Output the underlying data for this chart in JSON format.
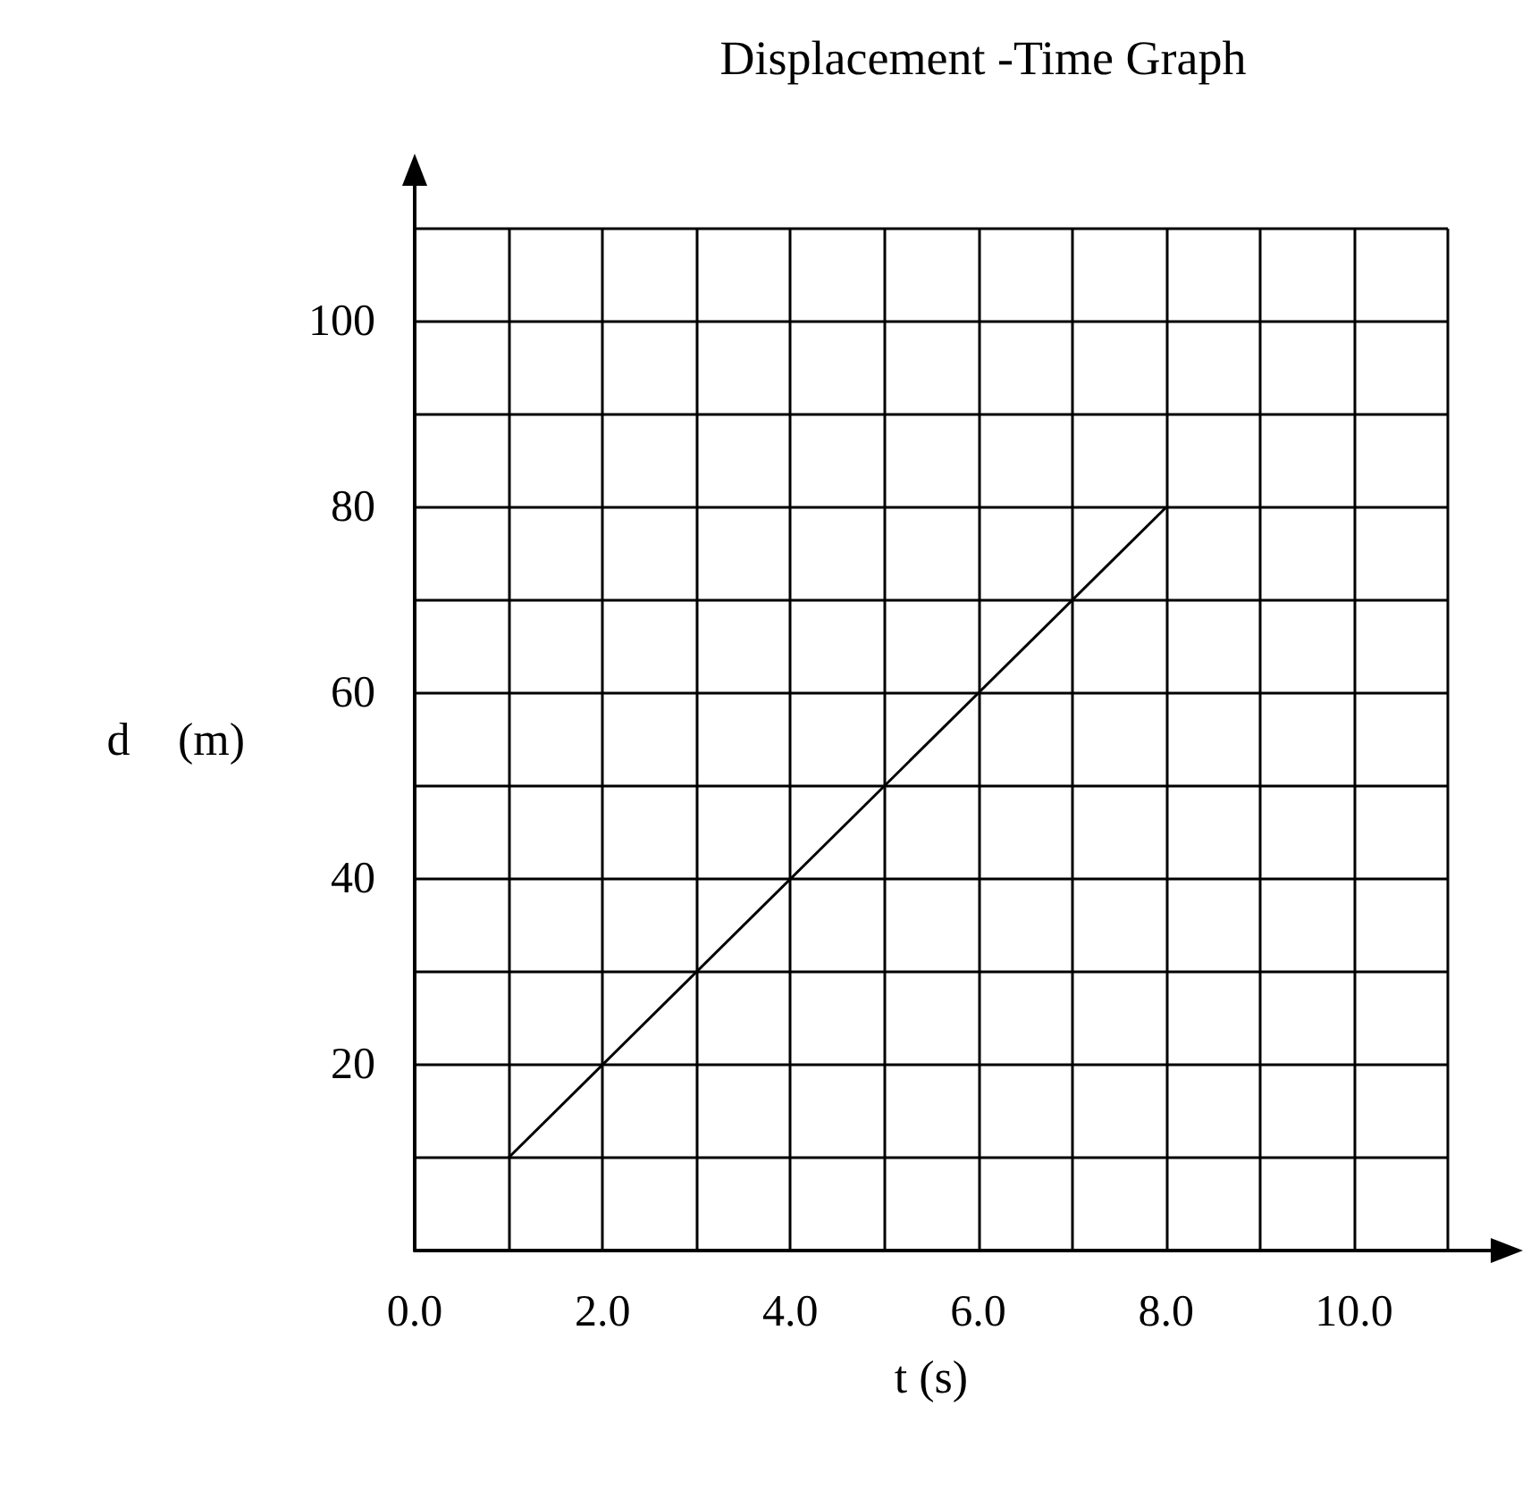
{
  "chart_data": {
    "type": "line",
    "title": "Displacement -Time Graph",
    "xlabel": "t (s)",
    "ylabel": "d⃗ (m)",
    "x": [
      1,
      8
    ],
    "series": [
      {
        "color": "#000000",
        "values": [
          10,
          80
        ]
      }
    ],
    "xlim": [
      0,
      11
    ],
    "xticks": [
      {
        "value": 0,
        "label": "0.0"
      },
      {
        "value": 1,
        "label": null
      },
      {
        "value": 2,
        "label": "2.0"
      },
      {
        "value": 3,
        "label": null
      },
      {
        "value": 4,
        "label": "4.0"
      },
      {
        "value": 5,
        "label": null
      },
      {
        "value": 6,
        "label": "6.0"
      },
      {
        "value": 7,
        "label": null
      },
      {
        "value": 8,
        "label": "8.0"
      },
      {
        "value": 9,
        "label": null
      },
      {
        "value": 10,
        "label": "10.0"
      },
      {
        "value": 11,
        "label": null
      }
    ],
    "ylim": [
      0,
      110
    ],
    "yticks": [
      {
        "value": 0,
        "label": null
      },
      {
        "value": 10,
        "label": null
      },
      20,
      {
        "value": 30,
        "label": null
      },
      40,
      {
        "value": 50,
        "label": null
      },
      60,
      {
        "value": 70,
        "label": null
      },
      80,
      {
        "value": 90,
        "label": null
      },
      100,
      {
        "value": 110,
        "label": null
      }
    ],
    "grid": true,
    "marker": "none",
    "line_style": "solid"
  }
}
